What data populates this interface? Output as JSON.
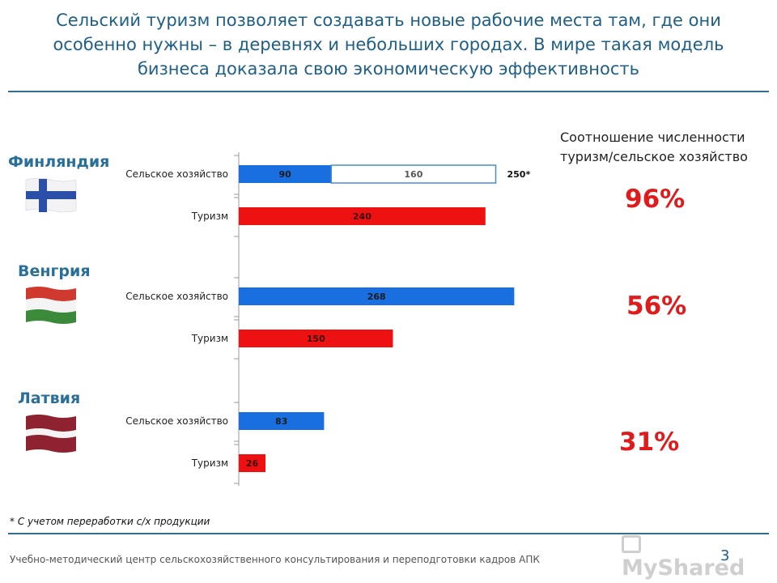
{
  "title": "Сельский туризм позволяет создавать новые рабочие места там, где они особенно нужны – в деревнях и небольших городах.  В мире такая модель бизнеса доказала свою экономическую эффективность",
  "countries": [
    {
      "name": "Финляндия",
      "flag_icon": "finland-flag-icon",
      "ratio": "96%"
    },
    {
      "name": "Венгрия",
      "flag_icon": "hungary-flag-icon",
      "ratio": "56%"
    },
    {
      "name": "Латвия",
      "flag_icon": "latvia-flag-icon",
      "ratio": "31%"
    }
  ],
  "ratio_header": "Соотношение численности туризм/сельское хозяйство",
  "footnote": "* С учетом переработки с/х продукции",
  "footer": "Учебно-методический центр сельскохозяйственного консультирования и переподготовки кадров АПК",
  "page_number": "3",
  "logo_text": "MyShared",
  "colors": {
    "agri": "#1a6fe0",
    "tourism": "#ee1111",
    "title": "#1f5f86",
    "ratio": "#e01b1b"
  },
  "chart_data": {
    "type": "bar",
    "orientation": "horizontal",
    "xlim": [
      0,
      250
    ],
    "groups": [
      {
        "country": "Финляндия",
        "bars": [
          {
            "category": "Сельское хозяйство",
            "segments": [
              {
                "value": 90,
                "label": "90"
              },
              {
                "value": 160,
                "label": "160",
                "style": "outline"
              }
            ],
            "total_label": "250*"
          },
          {
            "category": "Туризм",
            "segments": [
              {
                "value": 240,
                "label": "240"
              }
            ]
          }
        ]
      },
      {
        "country": "Венгрия",
        "bars": [
          {
            "category": "Сельское хозяйство",
            "segments": [
              {
                "value": 268,
                "label": "268"
              }
            ]
          },
          {
            "category": "Туризм",
            "segments": [
              {
                "value": 150,
                "label": "150"
              }
            ]
          }
        ]
      },
      {
        "country": "Латвия",
        "bars": [
          {
            "category": "Сельское хозяйство",
            "segments": [
              {
                "value": 83,
                "label": "83"
              }
            ]
          },
          {
            "category": "Туризм",
            "segments": [
              {
                "value": 26,
                "label": "26"
              }
            ]
          }
        ]
      }
    ]
  }
}
